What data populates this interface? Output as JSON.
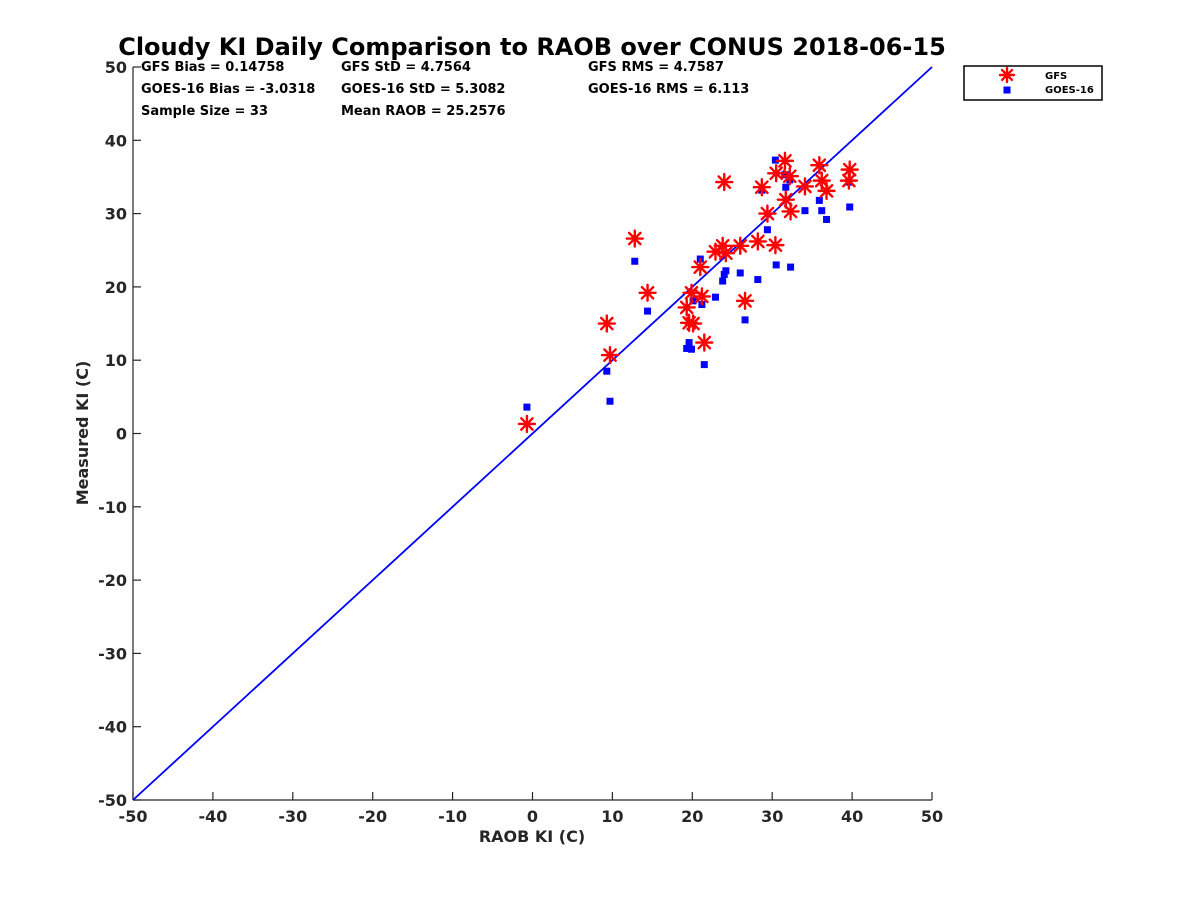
{
  "chart_data": {
    "type": "scatter",
    "title": "Cloudy KI Daily Comparison to RAOB over CONUS 2018-06-15",
    "xlabel": "RAOB KI (C)",
    "ylabel": "Measured KI (C)",
    "xlim": [
      -50,
      50
    ],
    "ylim": [
      -50,
      50
    ],
    "xticks": [
      "-50",
      "-40",
      "-30",
      "-20",
      "-10",
      "0",
      "10",
      "20",
      "30",
      "40",
      "50"
    ],
    "yticks": [
      "-50",
      "-40",
      "-30",
      "-20",
      "-10",
      "0",
      "10",
      "20",
      "30",
      "40",
      "50"
    ],
    "grid": false,
    "legend_position": "top-right, outside plot",
    "reference_line": {
      "from": [
        -50,
        -50
      ],
      "to": [
        50,
        50
      ],
      "color": "#0000ff"
    },
    "stats": [
      "GFS Bias = 0.14758",
      "GFS StD = 4.7564",
      "GFS RMS = 4.7587",
      "GOES-16 Bias = -3.0318",
      "GOES-16 StD = 5.3082",
      "GOES-16 RMS = 6.113",
      "Sample Size = 33",
      "Mean RAOB = 25.2576"
    ],
    "series": [
      {
        "name": "GFS",
        "marker": "asterisk",
        "color": "#ff0000",
        "points": [
          [
            -0.7,
            1.3
          ],
          [
            9.3,
            15.0
          ],
          [
            9.7,
            10.7
          ],
          [
            12.8,
            26.6
          ],
          [
            14.4,
            19.2
          ],
          [
            19.3,
            17.2
          ],
          [
            19.6,
            15.1
          ],
          [
            19.9,
            19.2
          ],
          [
            20.1,
            15.0
          ],
          [
            21.0,
            22.7
          ],
          [
            21.2,
            18.7
          ],
          [
            21.5,
            12.4
          ],
          [
            22.9,
            24.8
          ],
          [
            23.8,
            25.6
          ],
          [
            24.0,
            34.3
          ],
          [
            24.2,
            24.6
          ],
          [
            26.0,
            25.6
          ],
          [
            26.6,
            18.1
          ],
          [
            28.2,
            26.2
          ],
          [
            28.7,
            33.6
          ],
          [
            29.4,
            30.0
          ],
          [
            30.4,
            25.7
          ],
          [
            30.5,
            35.5
          ],
          [
            31.6,
            37.2
          ],
          [
            31.7,
            31.9
          ],
          [
            32.2,
            35.1
          ],
          [
            32.3,
            30.3
          ],
          [
            34.1,
            33.7
          ],
          [
            35.9,
            36.6
          ],
          [
            36.2,
            34.5
          ],
          [
            36.8,
            33.1
          ],
          [
            39.6,
            34.5
          ],
          [
            39.7,
            36.0
          ]
        ]
      },
      {
        "name": "GOES-16",
        "marker": "square",
        "color": "#0000ff",
        "points": [
          [
            -0.7,
            3.6
          ],
          [
            9.3,
            8.5
          ],
          [
            9.7,
            4.4
          ],
          [
            12.8,
            23.5
          ],
          [
            14.4,
            16.7
          ],
          [
            19.3,
            11.6
          ],
          [
            19.6,
            12.4
          ],
          [
            19.9,
            11.5
          ],
          [
            20.1,
            18.1
          ],
          [
            21.0,
            23.8
          ],
          [
            21.2,
            17.6
          ],
          [
            21.5,
            9.4
          ],
          [
            22.9,
            18.6
          ],
          [
            23.8,
            20.8
          ],
          [
            24.0,
            21.7
          ],
          [
            24.2,
            22.2
          ],
          [
            26.0,
            21.9
          ],
          [
            26.6,
            15.5
          ],
          [
            28.2,
            21.0
          ],
          [
            28.7,
            33.2
          ],
          [
            29.4,
            27.8
          ],
          [
            30.4,
            37.3
          ],
          [
            30.5,
            23.0
          ],
          [
            31.6,
            35.3
          ],
          [
            31.7,
            33.6
          ],
          [
            32.2,
            34.6
          ],
          [
            32.3,
            22.7
          ],
          [
            34.1,
            30.4
          ],
          [
            35.9,
            31.8
          ],
          [
            36.2,
            30.4
          ],
          [
            36.8,
            29.2
          ],
          [
            39.6,
            34.3
          ],
          [
            39.7,
            30.9
          ]
        ]
      }
    ]
  }
}
